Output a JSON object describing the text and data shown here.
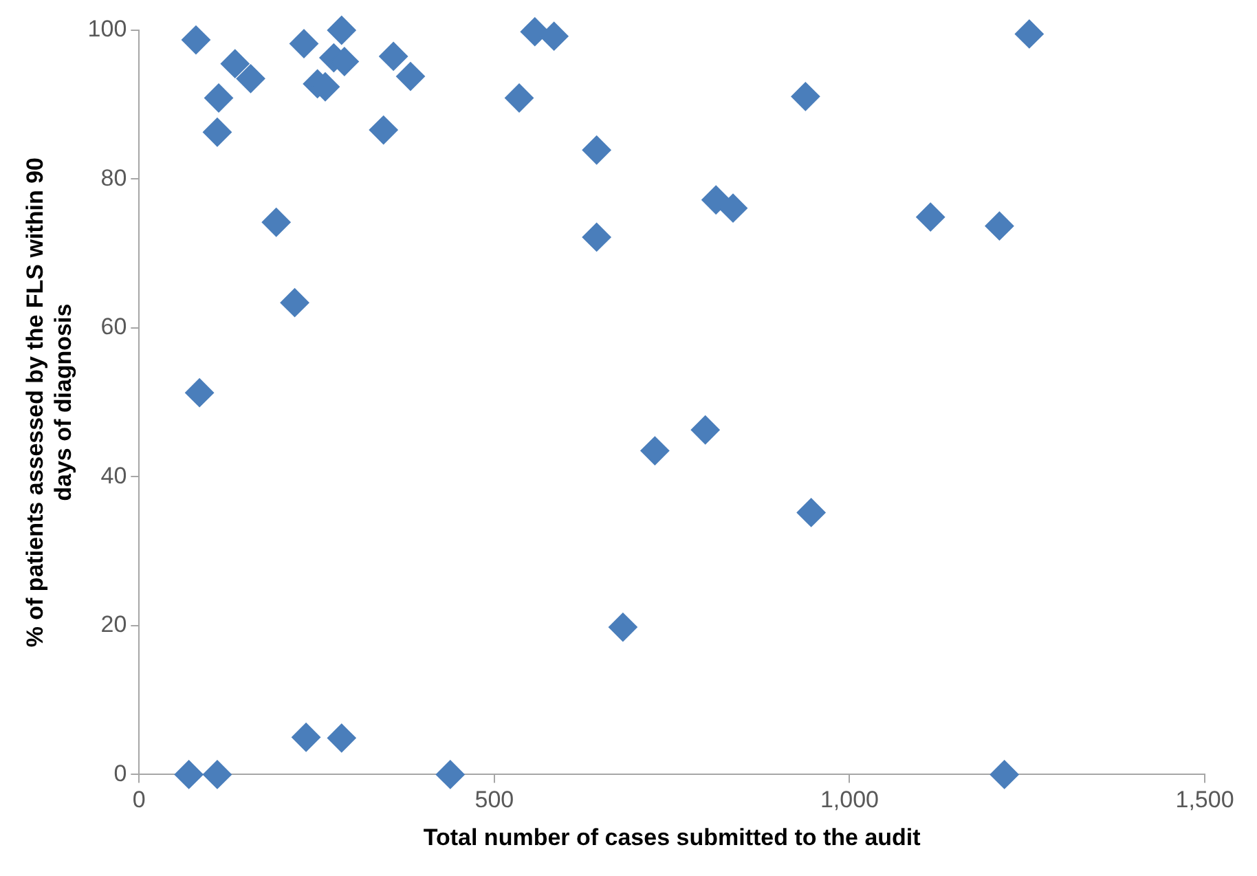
{
  "chart_data": {
    "type": "scatter",
    "xlabel": "Total number of cases submitted to the audit",
    "ylabel": "% of patients assessed by the FLS within 90 days of diagnosis",
    "x": [
      80,
      135,
      157,
      112,
      110,
      232,
      285,
      274,
      289,
      251,
      262,
      358,
      382,
      344,
      535,
      557,
      193,
      219,
      85,
      70,
      110,
      235,
      285,
      438,
      584,
      1253,
      938,
      644,
      812,
      836,
      1114,
      1211,
      644,
      726,
      797,
      946,
      681,
      1218
    ],
    "values": [
      98.7,
      95.5,
      93.5,
      90.9,
      86.3,
      98.2,
      100,
      96.3,
      95.8,
      92.8,
      92.4,
      96.5,
      93.8,
      86.6,
      90.9,
      99.8,
      74.2,
      63.4,
      51.3,
      0,
      0,
      5.0,
      4.9,
      0,
      99.2,
      99.5,
      91.1,
      83.9,
      77.2,
      76.1,
      74.9,
      73.7,
      72.2,
      43.5,
      46.3,
      35.2,
      19.8,
      0
    ],
    "color": "#4a7ebb",
    "marker": "diamond",
    "xlim": [
      0,
      1500
    ],
    "xticks": [
      0,
      500,
      {
        "value": 1000,
        "label": "1,000"
      },
      {
        "value": 1500,
        "label": "1,500"
      }
    ],
    "ylim": [
      0,
      100
    ],
    "yticks": [
      0,
      20,
      40,
      60,
      80,
      100
    ],
    "grid": false,
    "legend": false
  }
}
